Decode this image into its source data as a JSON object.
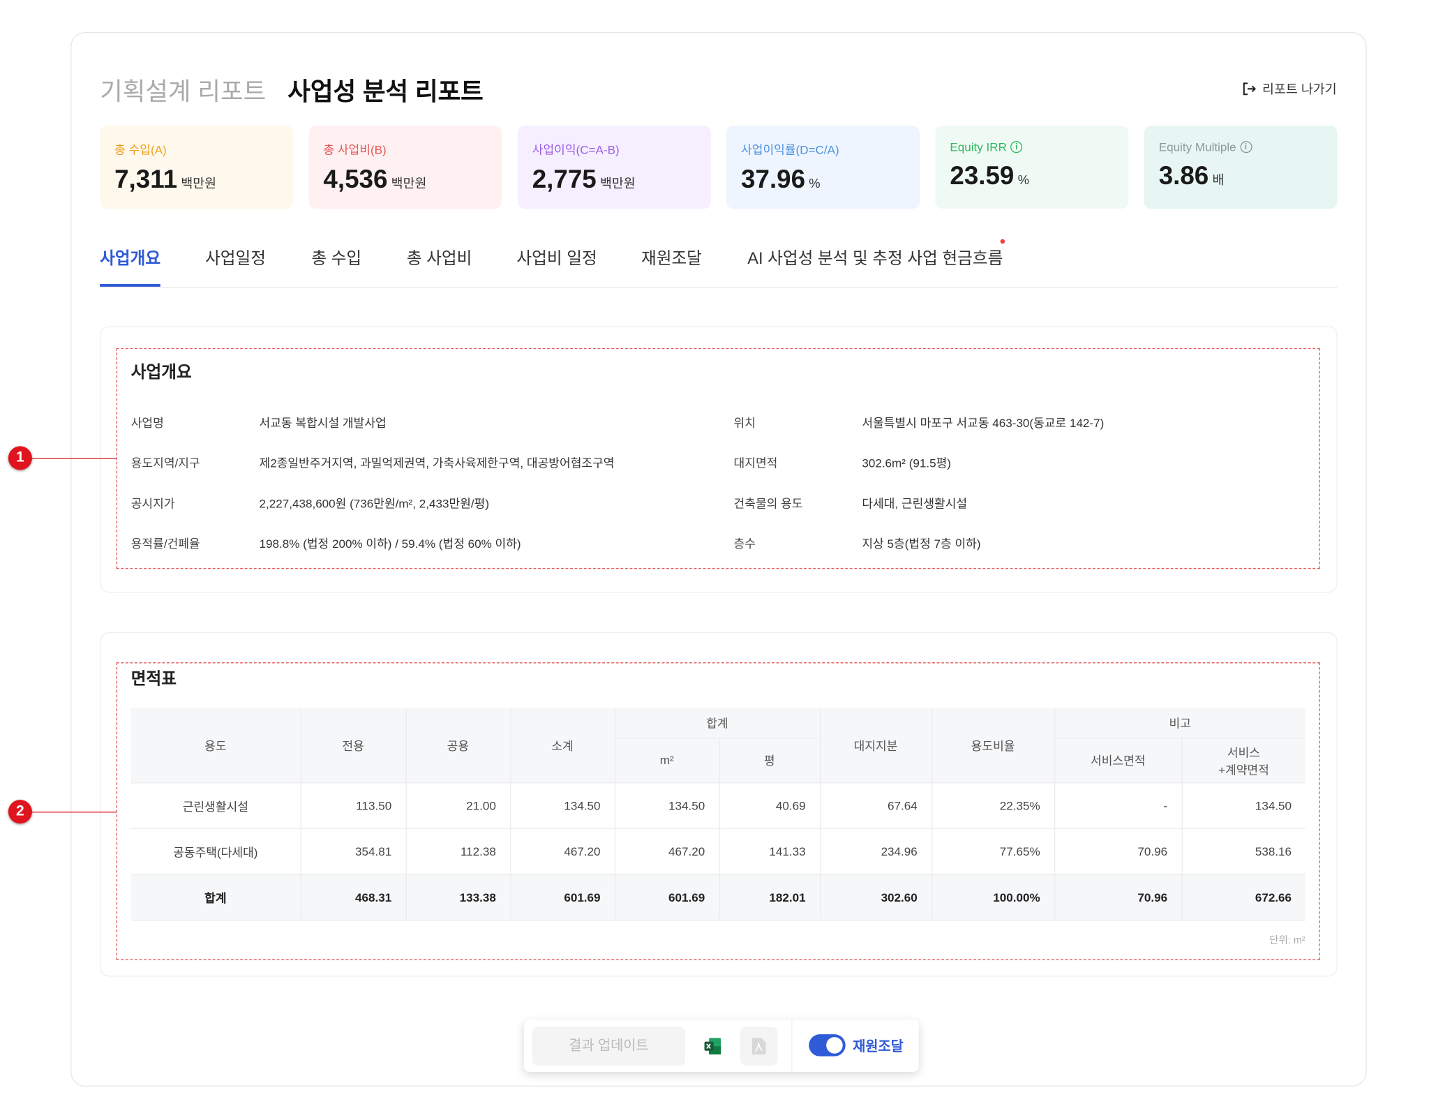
{
  "header": {
    "sub_title": "기획설계 리포트",
    "title": "사업성 분석 리포트",
    "export_label": "리포트 나가기"
  },
  "kpis": [
    {
      "label": "총 수입(A)",
      "value": "7,311",
      "unit": "백만원",
      "color": "#f0a020",
      "bg": "#fff8ec"
    },
    {
      "label": "총 사업비(B)",
      "value": "4,536",
      "unit": "백만원",
      "color": "#e85555",
      "bg": "#fff1f1"
    },
    {
      "label": "사업이익(C=A-B)",
      "value": "2,775",
      "unit": "백만원",
      "color": "#9b5de5",
      "bg": "#f5efff"
    },
    {
      "label": "사업이익률(D=C/A)",
      "value": "37.96",
      "unit": "%",
      "color": "#4a90e2",
      "bg": "#eef5ff"
    },
    {
      "label": "Equity IRR",
      "value": "23.59",
      "unit": "%",
      "color": "#2fb862",
      "bg": "#f0faf4"
    },
    {
      "label": "Equity Multiple",
      "value": "3.86",
      "unit": "배",
      "color": "#8a9a98",
      "bg": "#e8f6f3"
    }
  ],
  "tabs": [
    "사업개요",
    "사업일정",
    "총 수입",
    "총 사업비",
    "사업비 일정",
    "재원조달",
    "AI 사업성 분석 및 추정 사업 현금흐름"
  ],
  "overview": {
    "title": "사업개요",
    "rows": [
      {
        "l1": "사업명",
        "v1": "서교동 복합시설 개발사업",
        "l2": "위치",
        "v2": "서울특별시 마포구 서교동 463-30(동교로 142-7)"
      },
      {
        "l1": "용도지역/지구",
        "v1": "제2종일반주거지역, 과밀억제권역, 가축사육제한구역, 대공방어협조구역",
        "l2": "대지면적",
        "v2": "302.6m² (91.5평)"
      },
      {
        "l1": "공시지가",
        "v1": "2,227,438,600원 (736만원/m², 2,433만원/평)",
        "l2": "건축물의 용도",
        "v2": "다세대, 근린생활시설"
      },
      {
        "l1": "용적률/건폐율",
        "v1": "198.8% (법정 200% 이하) / 59.4% (법정 60% 이하)",
        "l2": "층수",
        "v2": "지상 5층(법정 7층 이하)"
      }
    ]
  },
  "area_table": {
    "title": "면적표",
    "headers": {
      "use": "용도",
      "exclusive": "전용",
      "common": "공용",
      "subtotal": "소계",
      "total": "합계",
      "m2": "m²",
      "pyeong": "평",
      "land_share": "대지지분",
      "ratio": "용도비율",
      "note": "비고",
      "service": "서비스면적",
      "service_contract_1": "서비스",
      "service_contract_2": "+계약면적"
    },
    "rows": [
      [
        "근린생활시설",
        "113.50",
        "21.00",
        "134.50",
        "134.50",
        "40.69",
        "67.64",
        "22.35%",
        "-",
        "134.50"
      ],
      [
        "공동주택(다세대)",
        "354.81",
        "112.38",
        "467.20",
        "467.20",
        "141.33",
        "234.96",
        "77.65%",
        "70.96",
        "538.16"
      ]
    ],
    "total_row": [
      "합계",
      "468.31",
      "133.38",
      "601.69",
      "601.69",
      "182.01",
      "302.60",
      "100.00%",
      "70.96",
      "672.66"
    ],
    "unit_note": "단위: m²"
  },
  "markers": [
    "1",
    "2"
  ],
  "toolbar": {
    "update_label": "결과 업데이트",
    "toggle_label": "재원조달",
    "toggle_on": true
  }
}
